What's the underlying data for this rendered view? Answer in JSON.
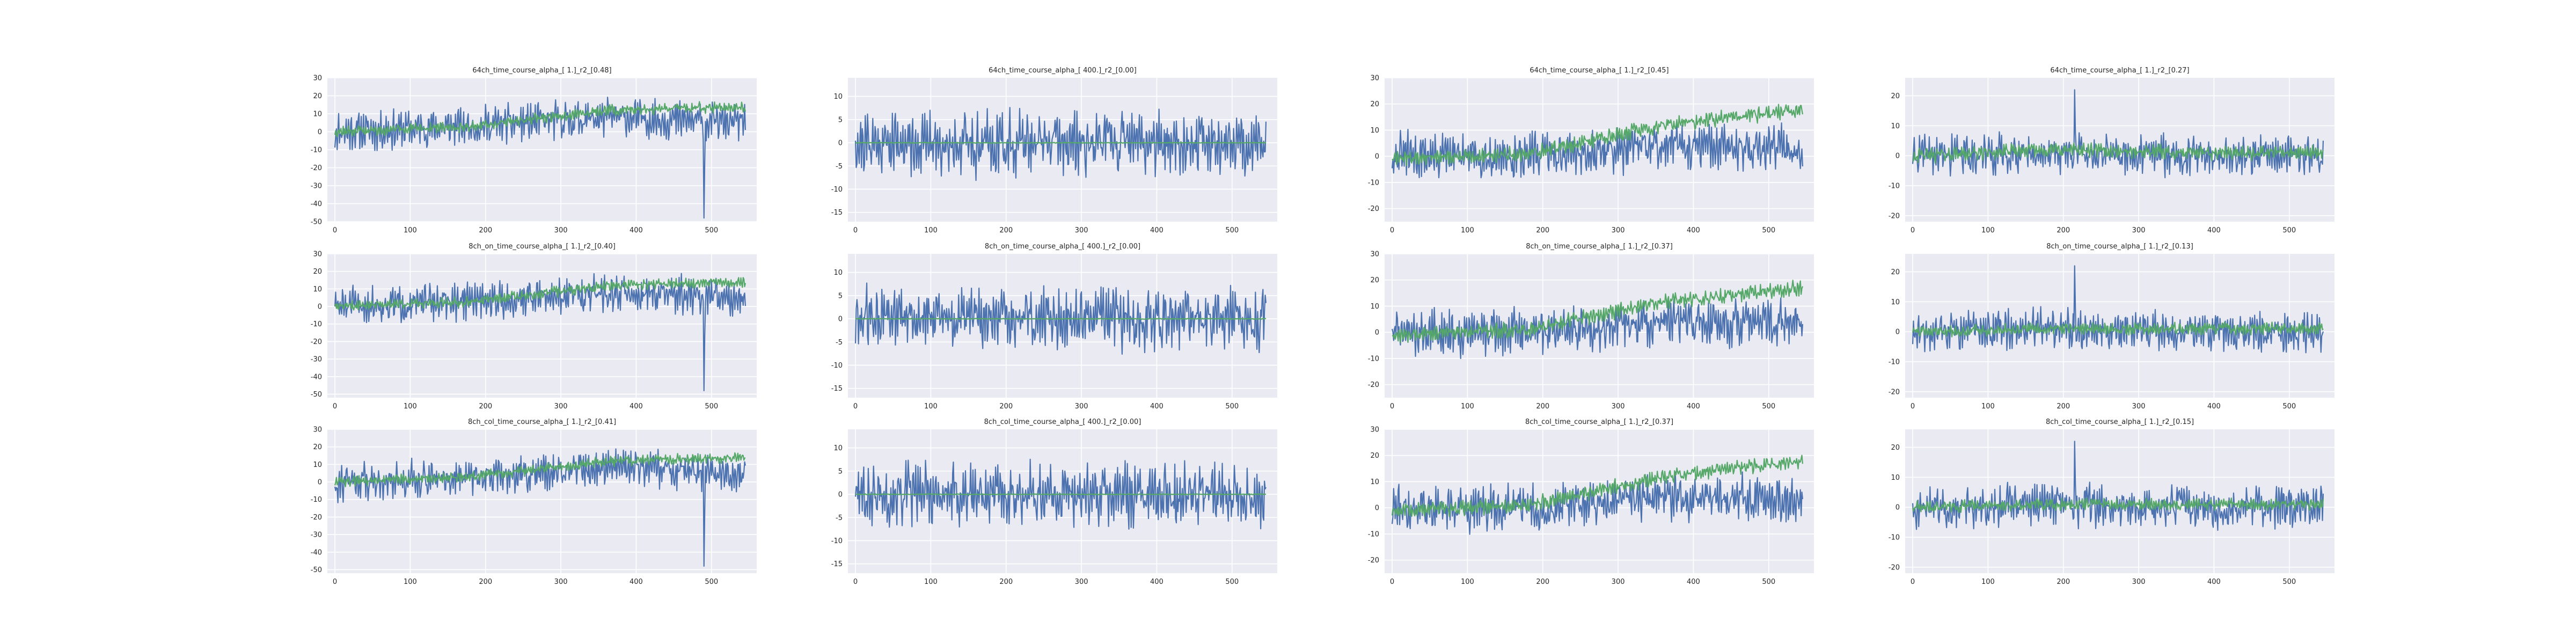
{
  "colors": {
    "series_blue": "#4c72b0",
    "series_green": "#55a868"
  },
  "chart_data": [
    {
      "type": "line",
      "title": "64ch_time_course_alpha_[ 1.]_r2_[0.48]",
      "xlim": [
        -10,
        560
      ],
      "ylim": [
        -50,
        30
      ],
      "xticks": [
        0,
        100,
        200,
        300,
        400,
        500
      ],
      "yticks": [
        -50,
        -40,
        -30,
        -20,
        -10,
        0,
        10,
        20,
        30
      ],
      "grid": true,
      "series": [
        {
          "color": "#4c72b0",
          "amp": 11,
          "trend": [
            0,
            3,
            8,
            5
          ],
          "dips": [
            [
              490,
              -48
            ]
          ],
          "seed": 11
        },
        {
          "color": "#55a868",
          "amp": 3,
          "trend": [
            0,
            3,
            12,
            14
          ],
          "seed": 12
        }
      ]
    },
    {
      "type": "line",
      "title": "64ch_time_course_alpha_[ 400.]_r2_[0.00]",
      "xlim": [
        -10,
        560
      ],
      "ylim": [
        -17,
        14
      ],
      "xticks": [
        0,
        100,
        200,
        300,
        400,
        500
      ],
      "yticks": [
        -15,
        -10,
        -5,
        0,
        5,
        10
      ],
      "grid": true,
      "series": [
        {
          "color": "#4c72b0",
          "amp": 7,
          "trend": [
            0,
            0,
            0,
            0
          ],
          "seed": 21
        },
        {
          "color": "#55a868",
          "amp": 0.1,
          "trend": [
            0,
            0,
            0,
            0
          ],
          "seed": 22
        }
      ]
    },
    {
      "type": "line",
      "title": "64ch_time_course_alpha_[ 1.]_r2_[0.45]",
      "xlim": [
        -10,
        560
      ],
      "ylim": [
        -25,
        30
      ],
      "xticks": [
        0,
        100,
        200,
        300,
        400,
        500
      ],
      "yticks": [
        -20,
        -10,
        0,
        10,
        20,
        30
      ],
      "grid": true,
      "series": [
        {
          "color": "#4c72b0",
          "amp": 9,
          "trend": [
            0,
            0,
            4,
            3
          ],
          "seed": 31
        },
        {
          "color": "#55a868",
          "amp": 3,
          "trend": [
            -1,
            1,
            12,
            18
          ],
          "seed": 32
        }
      ]
    },
    {
      "type": "line",
      "title": "64ch_time_course_alpha_[ 1.]_r2_[0.27]",
      "xlim": [
        -10,
        560
      ],
      "ylim": [
        -22,
        26
      ],
      "xticks": [
        0,
        100,
        200,
        300,
        400,
        500
      ],
      "yticks": [
        -20,
        -10,
        0,
        10,
        20
      ],
      "grid": true,
      "series": [
        {
          "color": "#4c72b0",
          "amp": 7,
          "trend": [
            0,
            1,
            0,
            0
          ],
          "dips": [
            [
              215,
              22
            ]
          ],
          "seed": 41
        },
        {
          "color": "#55a868",
          "amp": 2.5,
          "trend": [
            0,
            2,
            1,
            1
          ],
          "seed": 42
        }
      ]
    },
    {
      "type": "line",
      "title": "8ch_on_time_course_alpha_[ 1.]_r2_[0.40]",
      "xlim": [
        -10,
        560
      ],
      "ylim": [
        -52,
        30
      ],
      "xticks": [
        0,
        100,
        200,
        300,
        400,
        500
      ],
      "yticks": [
        -50,
        -40,
        -30,
        -20,
        -10,
        0,
        10,
        20,
        30
      ],
      "grid": true,
      "series": [
        {
          "color": "#4c72b0",
          "amp": 11,
          "trend": [
            0,
            3,
            8,
            5
          ],
          "dips": [
            [
              490,
              -48
            ]
          ],
          "seed": 51
        },
        {
          "color": "#55a868",
          "amp": 3,
          "trend": [
            0,
            3,
            12,
            14
          ],
          "seed": 52
        }
      ]
    },
    {
      "type": "line",
      "title": "8ch_on_time_course_alpha_[ 400.]_r2_[0.00]",
      "xlim": [
        -10,
        560
      ],
      "ylim": [
        -17,
        14
      ],
      "xticks": [
        0,
        100,
        200,
        300,
        400,
        500
      ],
      "yticks": [
        -15,
        -10,
        -5,
        0,
        5,
        10
      ],
      "grid": true,
      "series": [
        {
          "color": "#4c72b0",
          "amp": 7,
          "trend": [
            0,
            0,
            0,
            0
          ],
          "seed": 61
        },
        {
          "color": "#55a868",
          "amp": 0.1,
          "trend": [
            0,
            0,
            0,
            0
          ],
          "seed": 62
        }
      ]
    },
    {
      "type": "line",
      "title": "8ch_on_time_course_alpha_[ 1.]_r2_[0.37]",
      "xlim": [
        -10,
        560
      ],
      "ylim": [
        -25,
        30
      ],
      "xticks": [
        0,
        100,
        200,
        300,
        400,
        500
      ],
      "yticks": [
        -20,
        -10,
        0,
        10,
        20,
        30
      ],
      "grid": true,
      "series": [
        {
          "color": "#4c72b0",
          "amp": 9,
          "trend": [
            0,
            0,
            4,
            3
          ],
          "seed": 71
        },
        {
          "color": "#55a868",
          "amp": 3,
          "trend": [
            -1,
            1,
            12,
            17
          ],
          "seed": 72
        }
      ]
    },
    {
      "type": "line",
      "title": "8ch_on_time_course_alpha_[ 1.]_r2_[0.13]",
      "xlim": [
        -10,
        560
      ],
      "ylim": [
        -22,
        26
      ],
      "xticks": [
        0,
        100,
        200,
        300,
        400,
        500
      ],
      "yticks": [
        -20,
        -10,
        0,
        10,
        20
      ],
      "grid": true,
      "series": [
        {
          "color": "#4c72b0",
          "amp": 7,
          "trend": [
            0,
            1,
            0,
            0
          ],
          "dips": [
            [
              215,
              22
            ]
          ],
          "seed": 81
        },
        {
          "color": "#55a868",
          "amp": 2,
          "trend": [
            0,
            1,
            1,
            1
          ],
          "seed": 82
        }
      ]
    },
    {
      "type": "line",
      "title": "8ch_col_time_course_alpha_[ 1.]_r2_[0.41]",
      "xlim": [
        -10,
        560
      ],
      "ylim": [
        -52,
        30
      ],
      "xticks": [
        0,
        100,
        200,
        300,
        400,
        500
      ],
      "yticks": [
        -50,
        -40,
        -30,
        -20,
        -10,
        0,
        10,
        20,
        30
      ],
      "grid": true,
      "series": [
        {
          "color": "#4c72b0",
          "amp": 11,
          "trend": [
            0,
            3,
            8,
            5
          ],
          "dips": [
            [
              490,
              -48
            ]
          ],
          "seed": 91
        },
        {
          "color": "#55a868",
          "amp": 3,
          "trend": [
            0,
            3,
            12,
            14
          ],
          "seed": 92
        }
      ]
    },
    {
      "type": "line",
      "title": "8ch_col_time_course_alpha_[ 400.]_r2_[0.00]",
      "xlim": [
        -10,
        560
      ],
      "ylim": [
        -17,
        14
      ],
      "xticks": [
        0,
        100,
        200,
        300,
        400,
        500
      ],
      "yticks": [
        -15,
        -10,
        -5,
        0,
        5,
        10
      ],
      "grid": true,
      "series": [
        {
          "color": "#4c72b0",
          "amp": 7,
          "trend": [
            0,
            0,
            0,
            0
          ],
          "seed": 101
        },
        {
          "color": "#55a868",
          "amp": 0.1,
          "trend": [
            0,
            0,
            0,
            0
          ],
          "seed": 102
        }
      ]
    },
    {
      "type": "line",
      "title": "8ch_col_time_course_alpha_[ 1.]_r2_[0.37]",
      "xlim": [
        -10,
        560
      ],
      "ylim": [
        -25,
        30
      ],
      "xticks": [
        0,
        100,
        200,
        300,
        400,
        500
      ],
      "yticks": [
        -20,
        -10,
        0,
        10,
        20,
        30
      ],
      "grid": true,
      "series": [
        {
          "color": "#4c72b0",
          "amp": 9,
          "trend": [
            0,
            0,
            4,
            3
          ],
          "seed": 111
        },
        {
          "color": "#55a868",
          "amp": 3,
          "trend": [
            -1,
            1,
            12,
            18
          ],
          "seed": 112
        }
      ]
    },
    {
      "type": "line",
      "title": "8ch_col_time_course_alpha_[ 1.]_r2_[0.15]",
      "xlim": [
        -10,
        560
      ],
      "ylim": [
        -22,
        26
      ],
      "xticks": [
        0,
        100,
        200,
        300,
        400,
        500
      ],
      "yticks": [
        -20,
        -10,
        0,
        10,
        20
      ],
      "grid": true,
      "series": [
        {
          "color": "#4c72b0",
          "amp": 7,
          "trend": [
            0,
            1,
            0,
            0
          ],
          "dips": [
            [
              215,
              22
            ]
          ],
          "seed": 121
        },
        {
          "color": "#55a868",
          "amp": 2,
          "trend": [
            0,
            1,
            1,
            1
          ],
          "seed": 122
        }
      ]
    }
  ]
}
